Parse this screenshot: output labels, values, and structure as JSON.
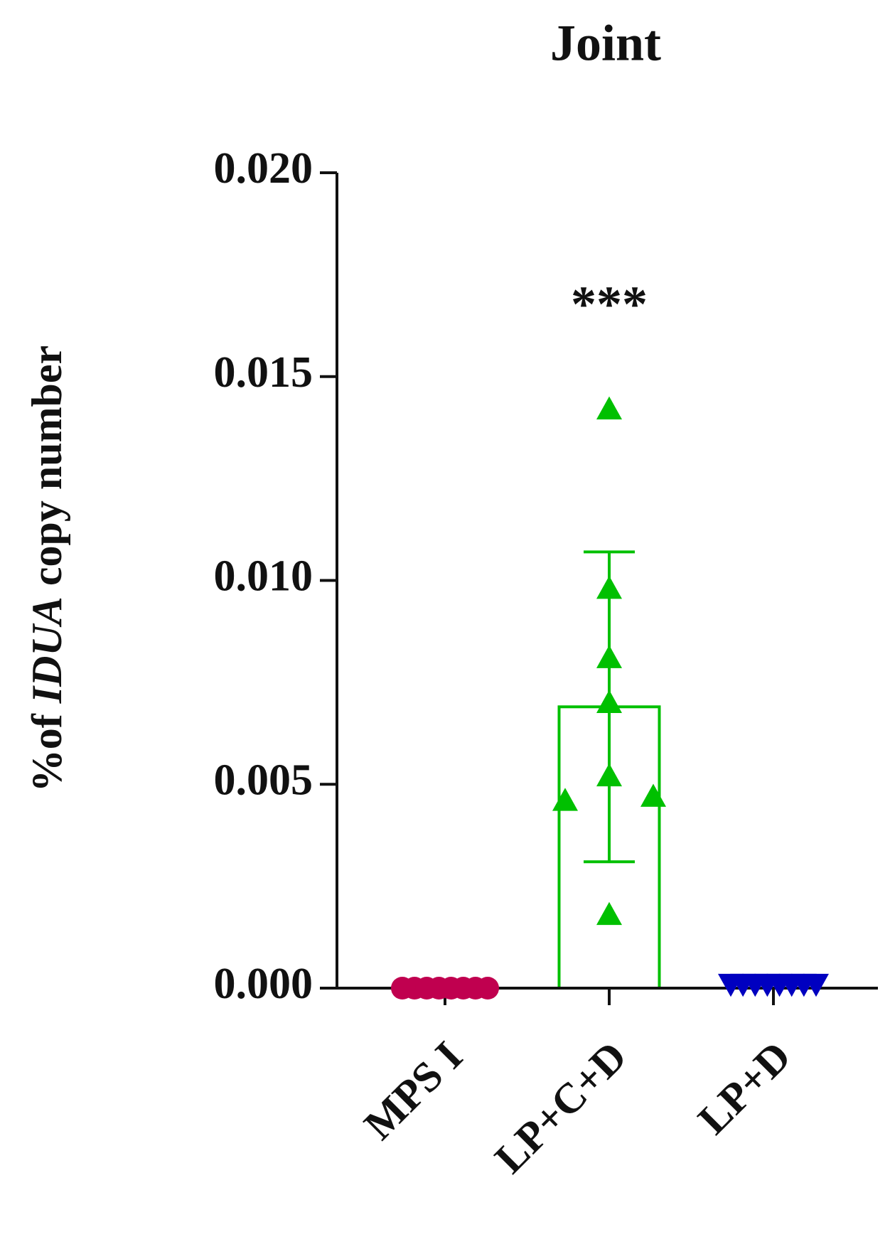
{
  "chart_data": {
    "type": "bar",
    "title": "Joint",
    "y_label_prefix": "%of ",
    "y_label_italic": "IDUA",
    "y_label_suffix": " copy number",
    "categories": [
      "MPS I",
      "LP+C+D",
      "LP+D"
    ],
    "values": [
      0,
      0.0069,
      0
    ],
    "errors": [
      0,
      0.0038,
      0
    ],
    "colors": [
      "#c0004f",
      "#00c000",
      "#0000c0"
    ],
    "markers": [
      "circle",
      "triangle-up",
      "triangle-down"
    ],
    "points": [
      [
        0,
        0,
        0,
        0,
        0,
        0,
        0,
        0
      ],
      [
        0.0142,
        0.0098,
        0.0081,
        0.007,
        0.0052,
        0.0046,
        0.0047,
        0.0018
      ],
      [
        0.0001,
        0.0001,
        0.0001,
        0.0001,
        0.0001,
        0.0001,
        0.0001,
        0.0001
      ]
    ],
    "annotations": [
      {
        "category": 1,
        "text": "***"
      }
    ],
    "ylim": [
      0,
      0.02
    ],
    "yticks": [
      {
        "value": 0,
        "label": "0.000"
      },
      {
        "value": 0.005,
        "label": "0.005"
      },
      {
        "value": 0.01,
        "label": "0.010"
      },
      {
        "value": 0.015,
        "label": "0.015"
      },
      {
        "value": 0.02,
        "label": "0.020"
      }
    ]
  }
}
